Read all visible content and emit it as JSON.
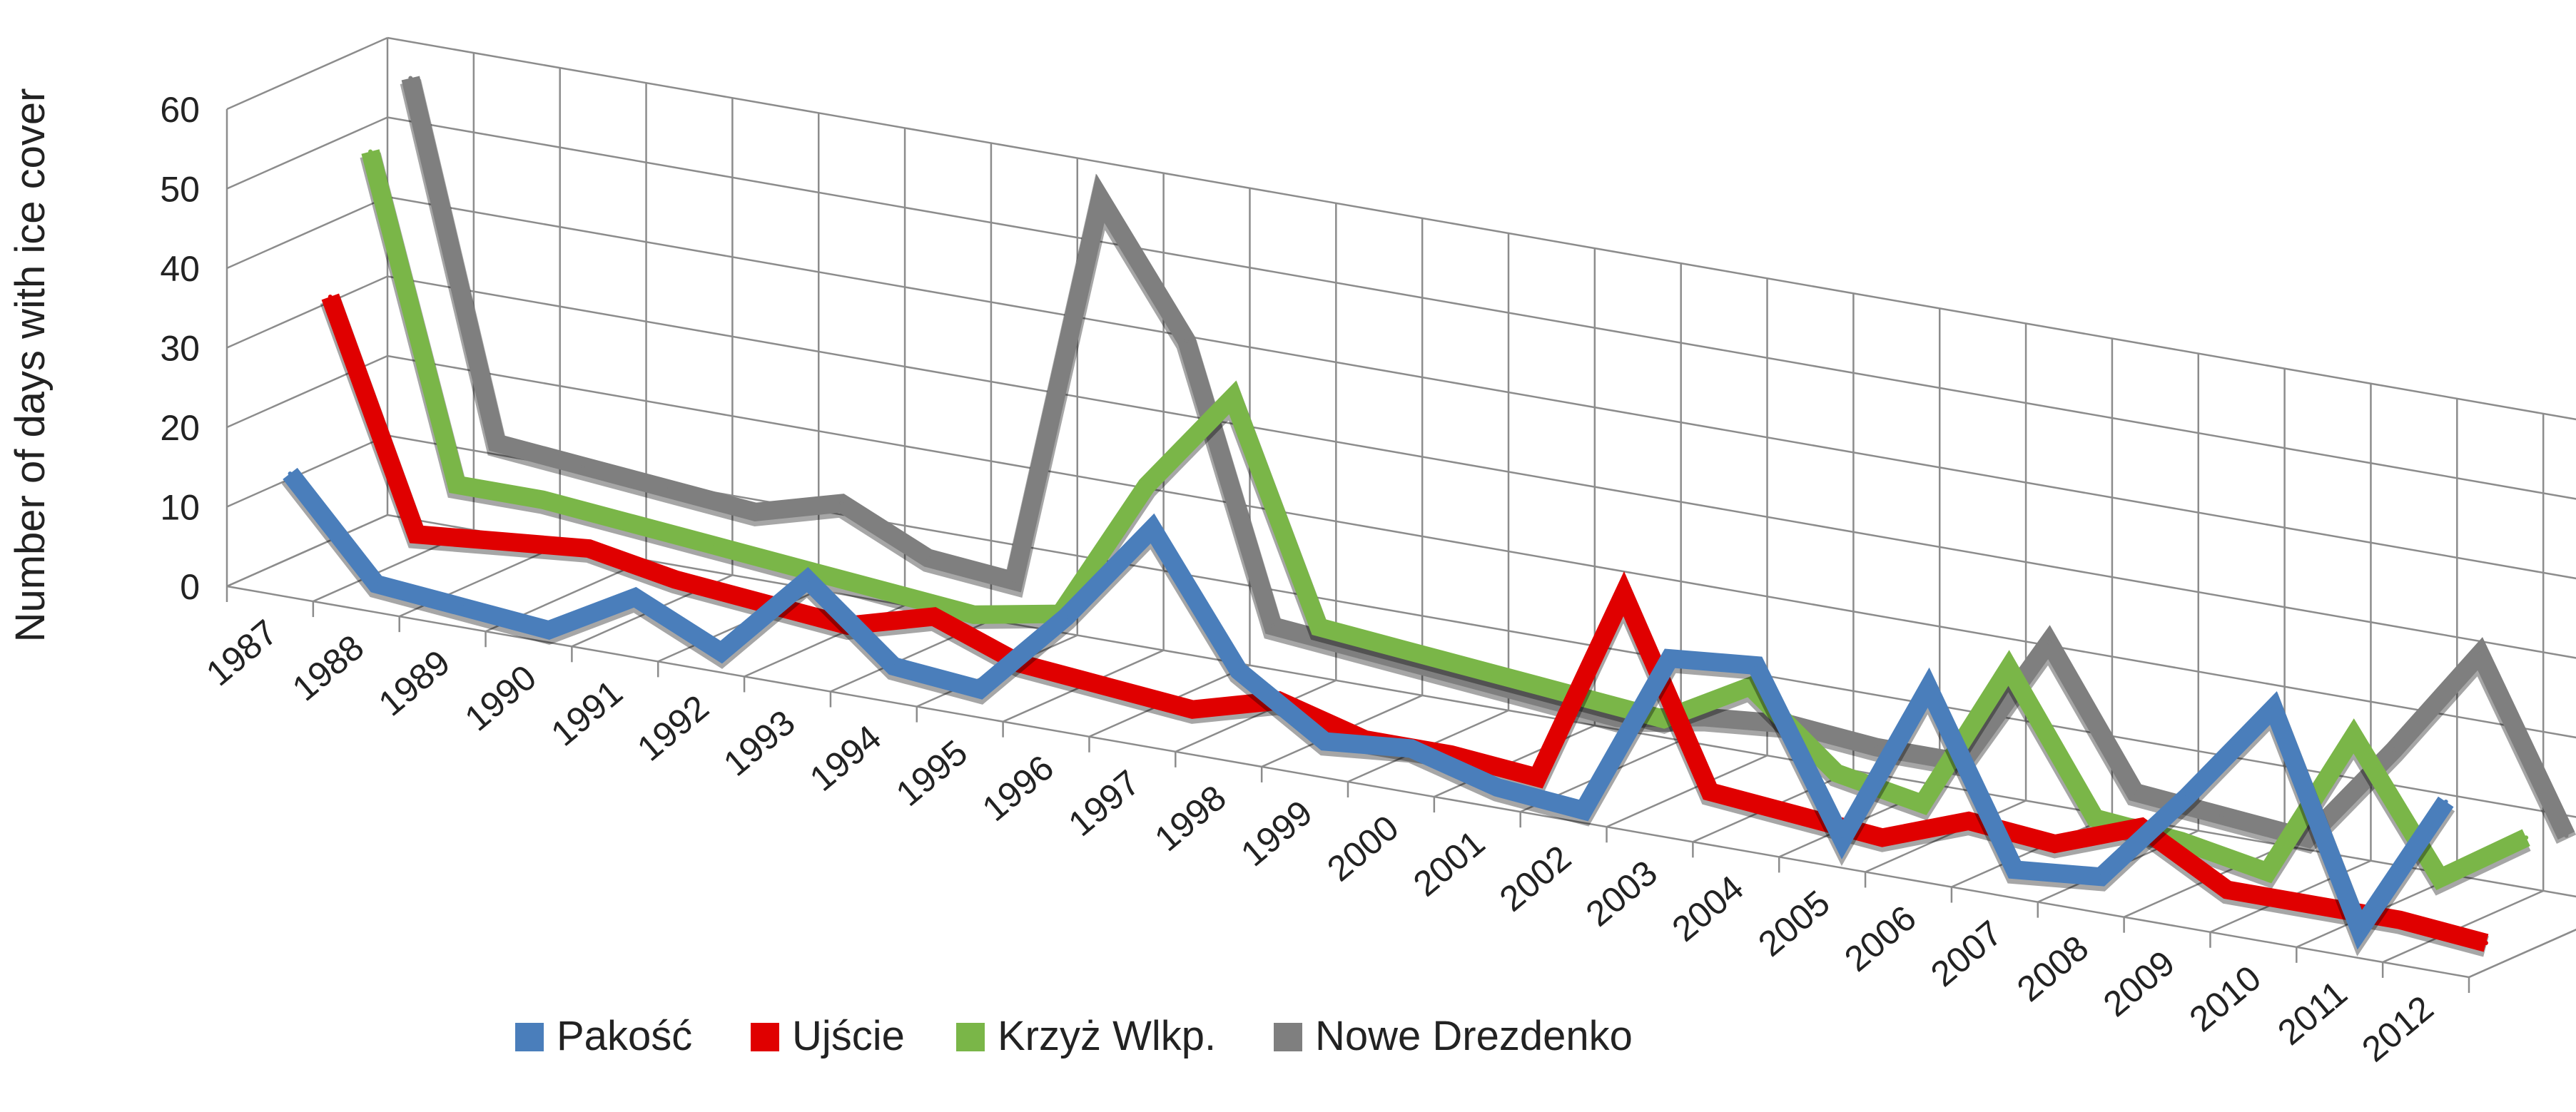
{
  "chart_data": {
    "type": "line",
    "style": "3d-line",
    "ylabel": "Number of days with ice cover",
    "xlabel": "",
    "ylim": [
      0,
      60
    ],
    "yticks": [
      0,
      10,
      20,
      30,
      40,
      50,
      60
    ],
    "categories": [
      "1987",
      "1988",
      "1989",
      "1990",
      "1991",
      "1992",
      "1993",
      "1994",
      "1995",
      "1996",
      "1997",
      "1998",
      "1999",
      "2000",
      "2001",
      "2002",
      "2003",
      "2004",
      "2005",
      "2006",
      "2007",
      "2008",
      "2009",
      "2010",
      "2011",
      "2012"
    ],
    "grid": true,
    "legend_position": "bottom",
    "series": [
      {
        "name": "Pakość",
        "color": "#4a7ebb",
        "values": [
          14,
          2,
          1,
          0,
          6,
          1,
          12,
          3,
          2,
          13,
          26,
          10,
          3,
          4,
          1,
          0,
          21,
          22,
          2,
          23,
          2,
          3,
          15,
          28,
          2,
          20
        ]
      },
      {
        "name": "Ujście",
        "color": "#e00000",
        "values": [
          34,
          6,
          7,
          8,
          6,
          5,
          4,
          7,
          3,
          2,
          1,
          4,
          1,
          1,
          0,
          25,
          2,
          1,
          0,
          4,
          3,
          7,
          1,
          1,
          1,
          0
        ]
      },
      {
        "name": "Krzyż Wlkp.",
        "color": "#7ab648",
        "values": [
          50,
          10,
          10,
          9,
          8,
          7,
          6,
          5,
          7,
          25,
          38,
          11,
          10,
          9,
          8,
          7,
          13,
          4,
          2,
          21,
          4,
          3,
          1,
          20,
          4,
          11
        ]
      },
      {
        "name": "Nowe Drezdenko",
        "color": "#7f7f7f",
        "values": [
          57,
          13,
          12,
          11,
          10,
          13,
          8,
          7,
          57,
          41,
          7,
          6,
          5,
          4,
          3,
          5,
          6,
          5,
          5,
          22,
          5,
          4,
          3,
          16,
          30,
          9
        ]
      }
    ]
  }
}
